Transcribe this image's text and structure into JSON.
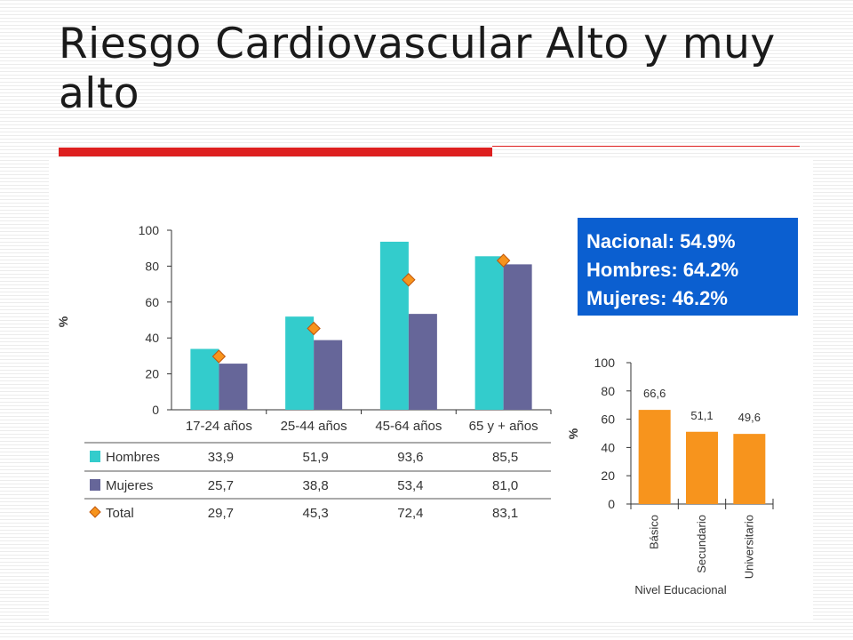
{
  "slide": {
    "title": "Riesgo Cardiovascular Alto y muy alto",
    "summary_box": {
      "lines": [
        "Nacional: 54.9%",
        "Hombres: 64.2%",
        "Mujeres: 46.2%"
      ],
      "background": "#0b5fd0"
    }
  },
  "colors": {
    "hombres": "#33cccc",
    "mujeres": "#666699",
    "total": "#f7941d",
    "total_border": "#c0560a",
    "education": "#f7941d",
    "accent_red": "#dd1f1f"
  },
  "chart_data": [
    {
      "type": "bar",
      "categories": [
        "17-24 años",
        "25-44 años",
        "45-64 años",
        "65 y + años"
      ],
      "series": [
        {
          "name": "Hombres",
          "values": [
            33.9,
            51.9,
            93.6,
            85.5
          ],
          "display": [
            "33,9",
            "51,9",
            "93,6",
            "85,5"
          ]
        },
        {
          "name": "Mujeres",
          "values": [
            25.7,
            38.8,
            53.4,
            81.0
          ],
          "display": [
            "25,7",
            "38,8",
            "53,4",
            "81,0"
          ]
        },
        {
          "name": "Total",
          "values": [
            29.7,
            45.3,
            72.4,
            83.1
          ],
          "display": [
            "29,7",
            "45,3",
            "72,4",
            "83,1"
          ],
          "marker": "diamond"
        }
      ],
      "ylabel": "%",
      "ylim": [
        0,
        100
      ],
      "yticks": [
        0,
        20,
        40,
        60,
        80,
        100
      ],
      "legend": "table below chart"
    },
    {
      "type": "bar",
      "categories": [
        "Básico",
        "Secundario",
        "Universitario"
      ],
      "values": [
        66.6,
        51.1,
        49.6
      ],
      "labels": [
        "66,6",
        "51,1",
        "49,6"
      ],
      "xlabel": "Nivel Educacional",
      "ylabel": "%",
      "ylim": [
        0,
        100
      ],
      "yticks": [
        0,
        20,
        40,
        60,
        80,
        100
      ]
    }
  ]
}
